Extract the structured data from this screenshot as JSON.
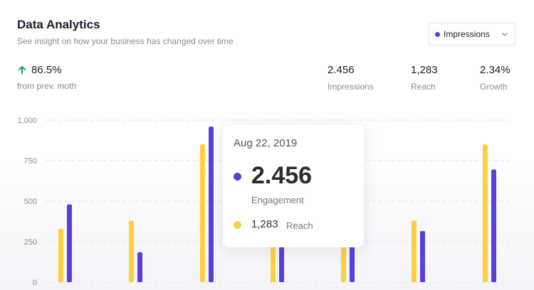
{
  "header": {
    "title": "Data Analytics",
    "subtitle": "See insight on how your business has changed over time"
  },
  "dropdown": {
    "selected": "Impressions",
    "dot_color": "#5b3fd9"
  },
  "summary": {
    "change": "86.5%",
    "change_label": "from prev. moth"
  },
  "kpis": [
    {
      "value": "2.456",
      "label": "Impressions"
    },
    {
      "value": "1,283",
      "label": "Reach"
    },
    {
      "value": "2.34%",
      "label": "Growth"
    }
  ],
  "tooltip": {
    "date": "Aug 22, 2019",
    "engagement_value": "2.456",
    "engagement_label": "Engagement",
    "reach_value": "1,283",
    "reach_label": "Reach"
  },
  "chart_data": {
    "type": "bar",
    "y_ticks": [
      "1,000",
      "750",
      "500",
      "250",
      "0"
    ],
    "ylim": [
      0,
      1000
    ],
    "grid": true,
    "series": [
      {
        "color": "#fdd042",
        "values": [
          330,
          380,
          850,
          320,
          300,
          380,
          850
        ]
      },
      {
        "color": "#5b3fd9",
        "values": [
          480,
          185,
          960,
          240,
          260,
          315,
          695
        ]
      }
    ]
  }
}
